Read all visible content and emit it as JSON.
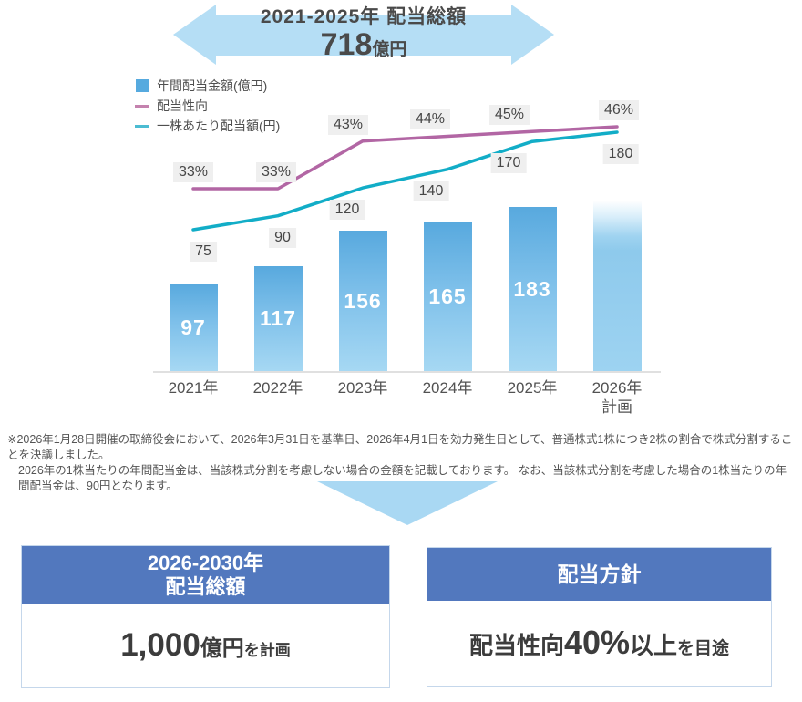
{
  "banner": {
    "title": "2021-2025年 配当総額",
    "amount": "718",
    "unit": "億円"
  },
  "legend": [
    {
      "label": "年間配当金額(億円)",
      "marker": "blue-square"
    },
    {
      "label": "配当性向",
      "marker": "pink-line"
    },
    {
      "label": "一株あたり配当額(円)",
      "marker": "teal-line"
    }
  ],
  "chart_data": {
    "type": "bar",
    "title": "2021-2025年 配当総額 718億円",
    "categories": [
      "2021年",
      "2022年",
      "2023年",
      "2024年",
      "2025年",
      "2026年計画"
    ],
    "category_lines": [
      [
        "2021年"
      ],
      [
        "2022年"
      ],
      [
        "2023年"
      ],
      [
        "2024年"
      ],
      [
        "2025年"
      ],
      [
        "2026年",
        "計画"
      ]
    ],
    "series": [
      {
        "name": "年間配当金額(億円)",
        "type": "bar",
        "values": [
          97,
          117,
          156,
          165,
          183,
          null
        ],
        "plan_value": 200,
        "note": "2026年計画 bar is drawn as an unlabeled fading plan bar"
      },
      {
        "name": "配当性向",
        "type": "line",
        "unit": "%",
        "values": [
          33,
          33,
          43,
          44,
          45,
          46
        ],
        "labels": [
          "33%",
          "33%",
          "43%",
          "44%",
          "45%",
          "46%"
        ]
      },
      {
        "name": "一株あたり配当額(円)",
        "type": "line",
        "values": [
          75,
          90,
          120,
          140,
          170,
          180
        ],
        "labels": [
          "75",
          "90",
          "120",
          "140",
          "170",
          "180"
        ]
      }
    ],
    "xlabel": "",
    "ylabel": "",
    "grid": false,
    "legend_position": "top-left"
  },
  "footnote": {
    "line1": "※2026年1月28日開催の取締役会において、2026年3月31日を基準日、2026年4月1日を効力発生日として、普通株式1株につき2株の割合で株式分割することを決議しました。",
    "line2": "2026年の1株当たりの年間配当金は、当該株式分割を考慮しない場合の金額を記載しております。 なお、当該株式分割を考慮した場合の1株当たりの年間配当金は、90円となります。"
  },
  "plan_box": {
    "header_line1": "2026-2030年",
    "header_line2": "配当総額",
    "amount": "1,000",
    "unit": "億円",
    "suffix": "を計画"
  },
  "policy_box": {
    "header": "配当方針",
    "body_prefix": "配当性向",
    "body_value": "40%",
    "body_mid": "以上",
    "body_suffix": "を目途"
  },
  "colors": {
    "banner_blue": "#b5def5",
    "down_arrow_blue": "#a9d8f3",
    "bar_top": "#58a9de",
    "bar_bottom": "#a6d8f3",
    "payout_ratio_line": "#b266a4",
    "dividend_per_share_line": "#12adc7",
    "label_bg": "#efefef",
    "box_header_blue": "#5278be"
  }
}
